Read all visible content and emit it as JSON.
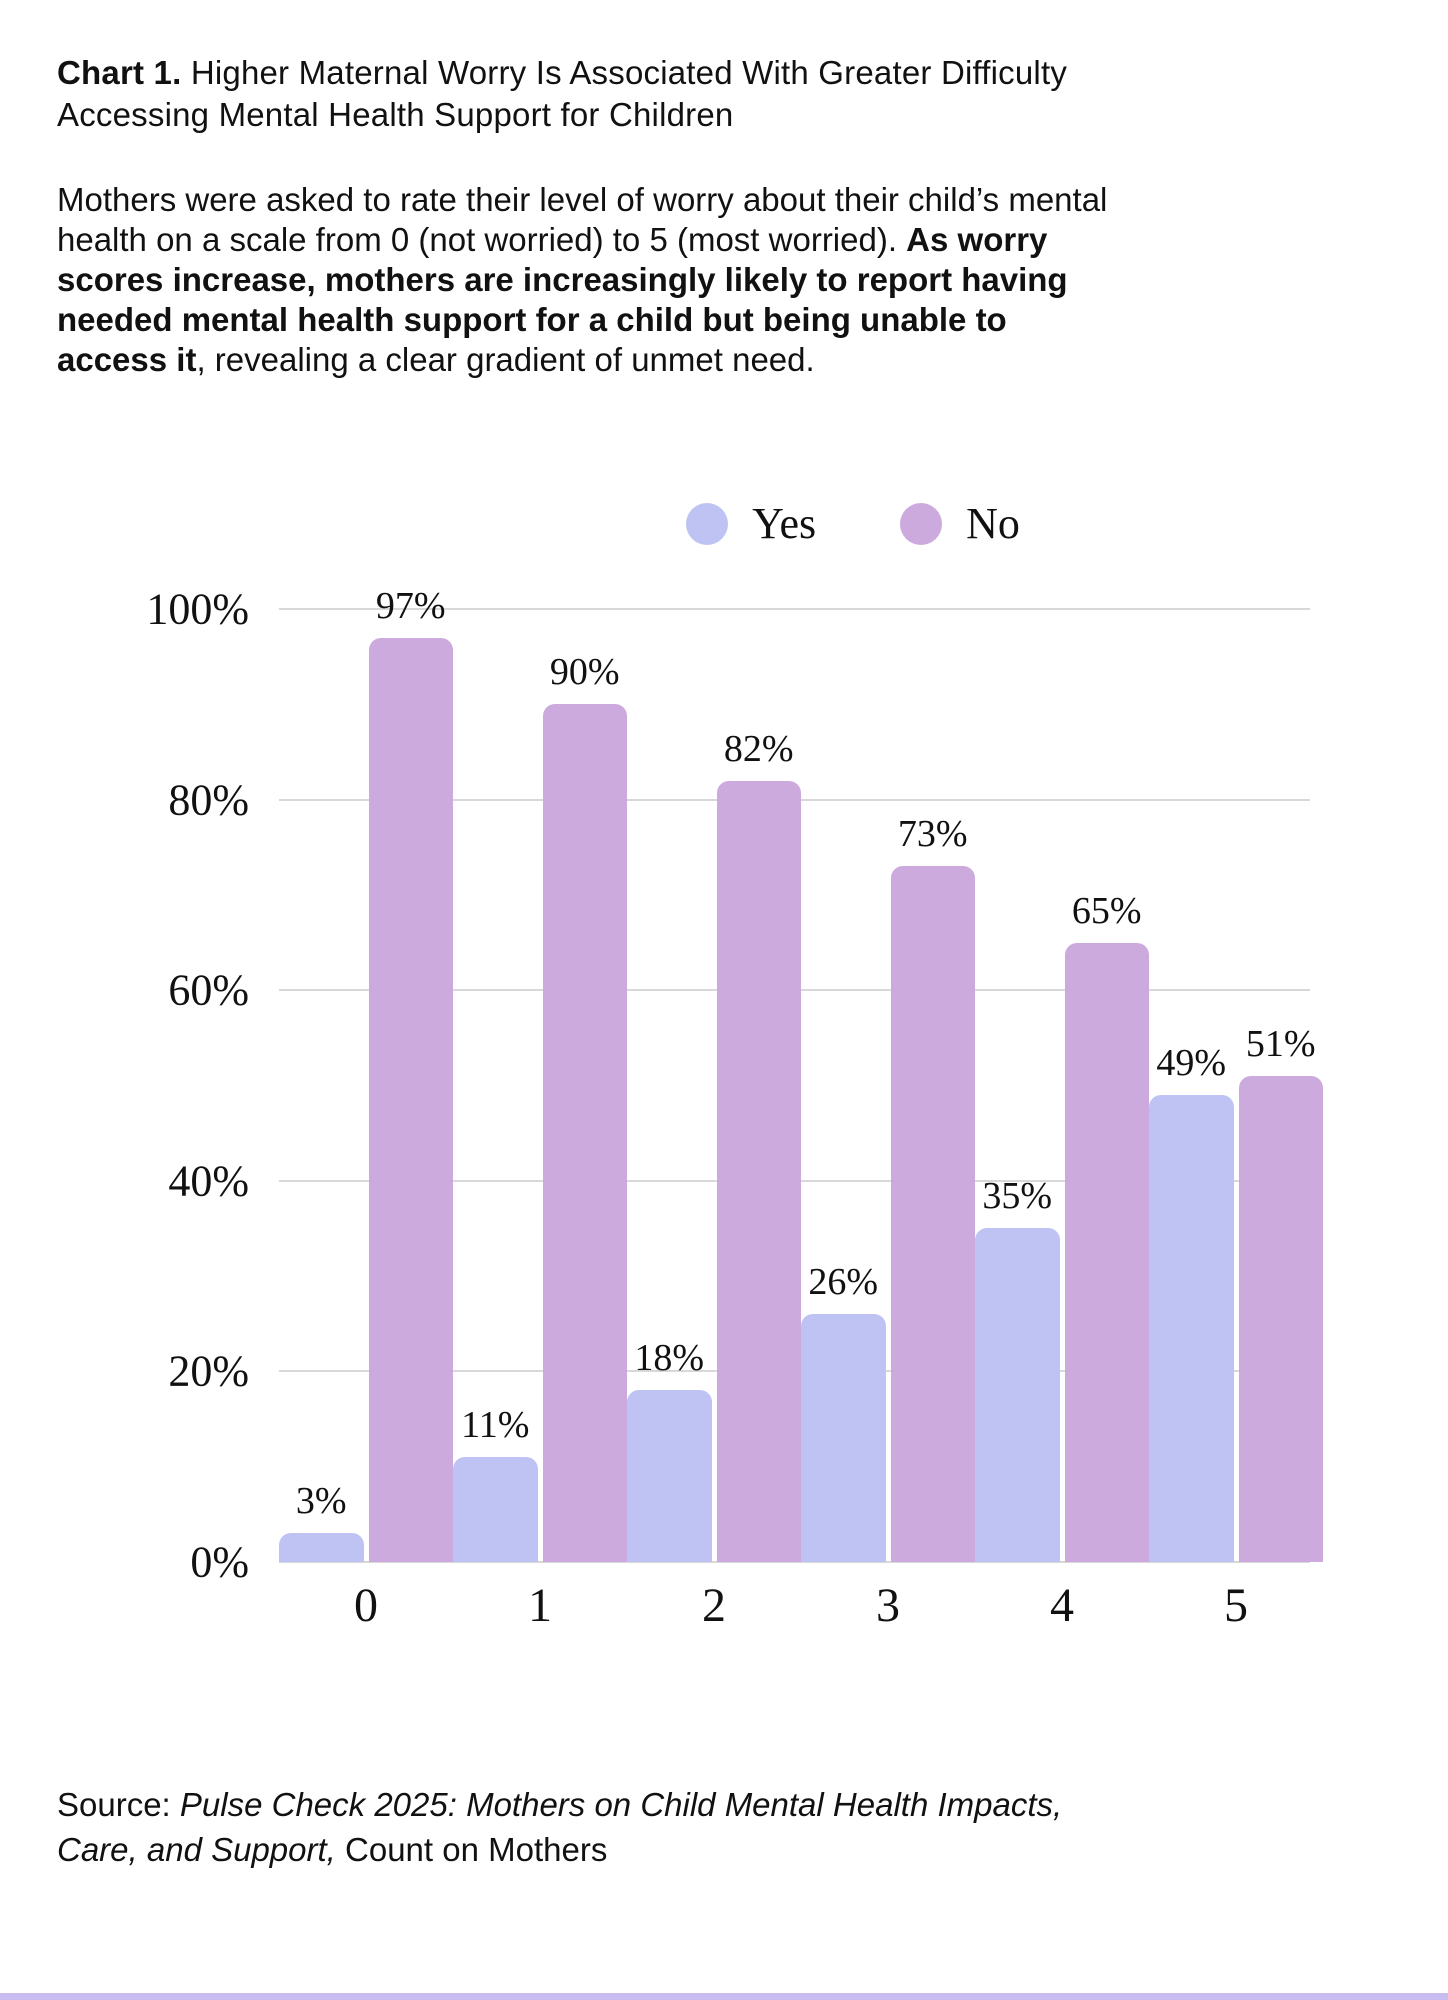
{
  "title": {
    "prefix": "Chart 1.",
    "text": " Higher Maternal Worry Is Associated With Greater Difficulty Accessing Mental Health Support for Children"
  },
  "description": {
    "normal_start": "Mothers were asked to rate their level of worry about their child’s mental health on a scale from 0 (not worried) to 5 (most worried). ",
    "bold": "As worry scores increase, mothers are increasingly likely to report having needed mental health support for a child but being unable to access it",
    "normal_end": ", revealing a clear gradient of unmet need."
  },
  "source": {
    "label": "Source: ",
    "citation_italic": "Pulse Check 2025: Mothers on Child Mental Health Impacts, Care, and Support,",
    "publisher": " Count on Mothers"
  },
  "colors": {
    "yes": "#bfc3f3",
    "no": "#ccaadd",
    "gridline": "#d8d8d8",
    "text": "#111111",
    "bottom_accent": "#c9bcf1"
  },
  "chart_data": {
    "type": "bar",
    "title": "Needed mental health support for a child but unable to access it, by maternal worry score",
    "categories": [
      "0",
      "1",
      "2",
      "3",
      "4",
      "5"
    ],
    "series": [
      {
        "name": "Yes",
        "color": "#bfc3f3",
        "values": [
          3,
          11,
          18,
          26,
          35,
          49
        ]
      },
      {
        "name": "No",
        "color": "#ccaadd",
        "values": [
          97,
          90,
          82,
          73,
          65,
          51
        ]
      }
    ],
    "value_suffix": "%",
    "xlabel": "",
    "ylabel": "",
    "ylim": [
      0,
      100
    ],
    "yticks": [
      0,
      20,
      40,
      60,
      80,
      100
    ],
    "ytick_labels": [
      "0%",
      "20%",
      "40%",
      "60%",
      "80%",
      "100%"
    ],
    "grid": true,
    "legend_position": "top-center",
    "data_labels": true
  }
}
